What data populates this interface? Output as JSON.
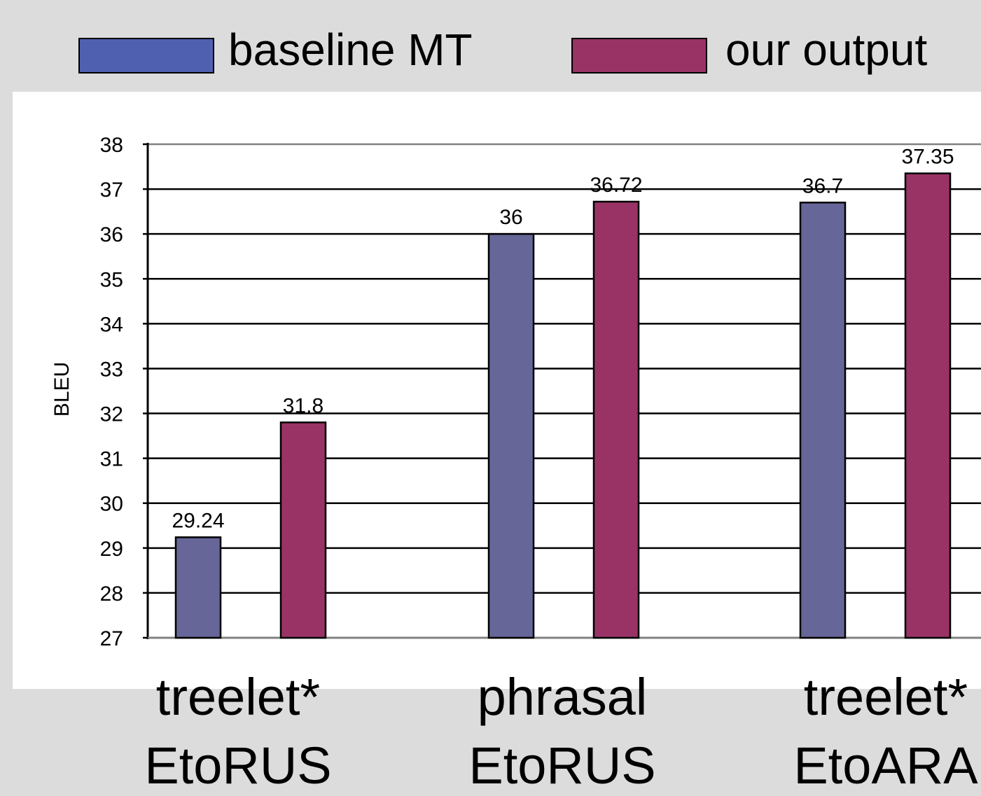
{
  "chart_data": {
    "type": "bar",
    "categories": [
      "treelet* EtoRUS",
      "phrasal EtoRUS",
      "treelet* EtoARA"
    ],
    "category_lines": [
      [
        "treelet*",
        "EtoRUS"
      ],
      [
        "phrasal",
        "EtoRUS"
      ],
      [
        "treelet*",
        "EtoARA"
      ]
    ],
    "series": [
      {
        "name": "baseline MT",
        "color": "#666699",
        "legend_color": "#5060b0",
        "values": [
          29.24,
          36,
          36.7
        ]
      },
      {
        "name": "our output",
        "color": "#993366",
        "legend_color": "#993366",
        "values": [
          31.8,
          36.72,
          37.35
        ]
      }
    ],
    "data_labels": [
      [
        "29.24",
        "36",
        "36.7"
      ],
      [
        "31.8",
        "36.72",
        "37.35"
      ]
    ],
    "ylabel": "BLEU",
    "ylim": [
      27,
      38
    ],
    "yticks": [
      27,
      28,
      29,
      30,
      31,
      32,
      33,
      34,
      35,
      36,
      37,
      38
    ],
    "grid": true,
    "legend_position": "top"
  }
}
